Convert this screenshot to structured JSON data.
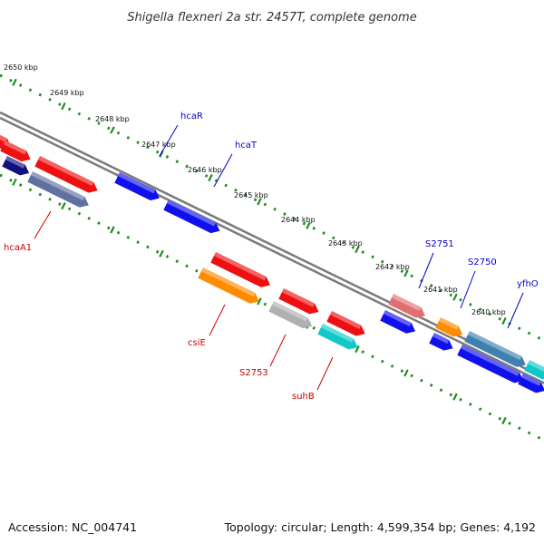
{
  "title": "Shigella flexneri 2a str. 2457T, complete genome",
  "footer": {
    "accession": "Accession: NC_004741",
    "summary": "Topology: circular; Length: 4,599,354 bp; Genes: 4,192"
  },
  "colors": {
    "forward_label": "#0000cc",
    "reverse_label": "#cc0000",
    "ticks": "#228b22",
    "backbone": "#7a7a7a",
    "blue": "#1010ee",
    "navy": "#101080",
    "red": "#ee1010",
    "orange": "#ff8c00",
    "gray": "#b0b0b0",
    "cyan": "#10c8c8",
    "pink": "#e07070",
    "steel": "#4080b0",
    "slate": "#6070a0"
  },
  "ruler": [
    {
      "text": "2650 kbp"
    },
    {
      "text": "2649 kbp"
    },
    {
      "text": "2648 kbp"
    },
    {
      "text": "2647 kbp"
    },
    {
      "text": "2646 kbp"
    },
    {
      "text": "2645 kbp"
    },
    {
      "text": "2644 kbp"
    },
    {
      "text": "2643 kbp"
    },
    {
      "text": "2642 kbp"
    },
    {
      "text": "2641 kbp"
    },
    {
      "text": "2640 kbp"
    }
  ],
  "gene_labels": {
    "hcaR": "hcaR",
    "hcaT": "hcaT",
    "S2751": "S2751",
    "S2750": "S2750",
    "yfhO": "yfhO",
    "hcaA1": "hcaA1",
    "csiE": "csiE",
    "S2753": "S2753",
    "suhB": "suhB"
  }
}
